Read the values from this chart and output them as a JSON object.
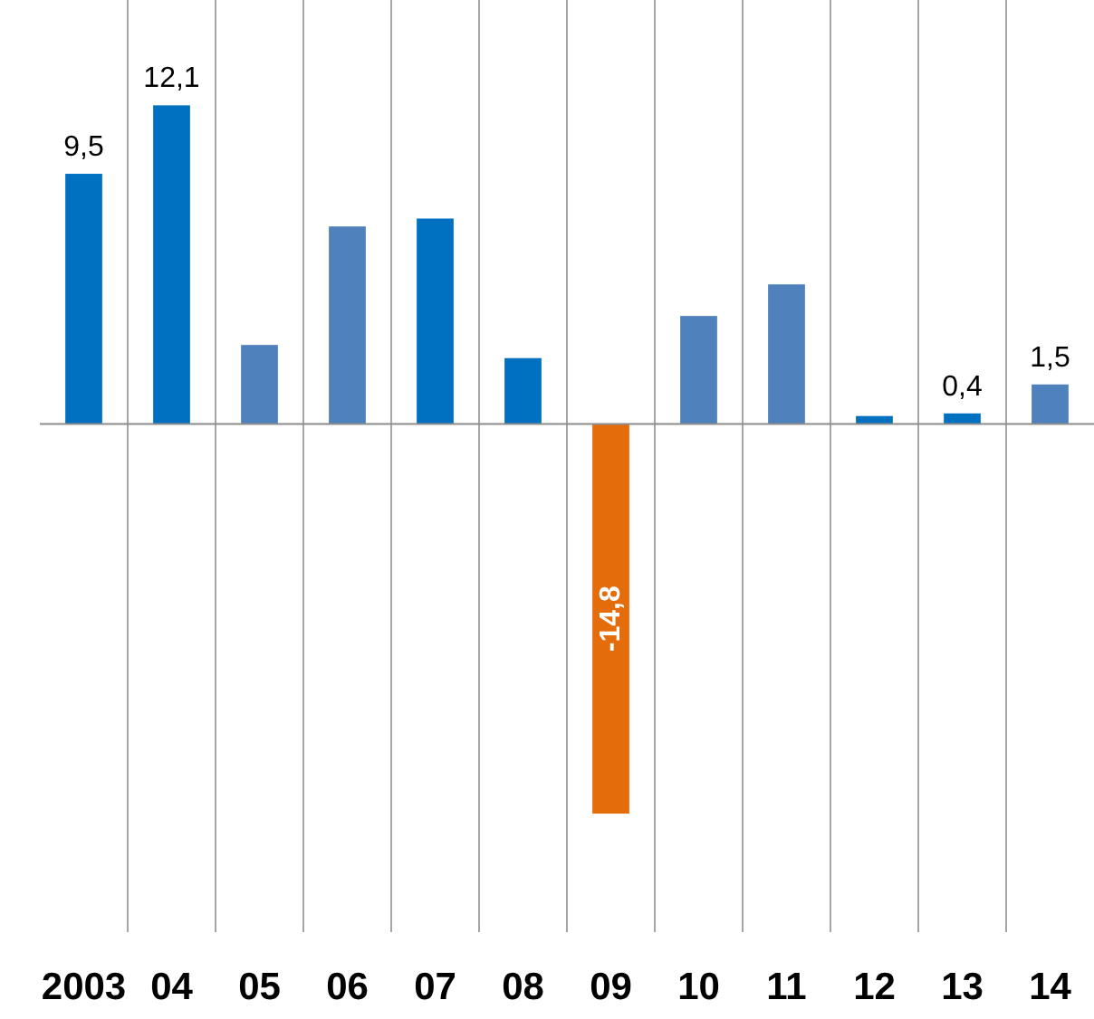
{
  "chart_data": {
    "type": "bar",
    "categories": [
      "2003",
      "04",
      "05",
      "06",
      "07",
      "08",
      "09",
      "10",
      "11",
      "12",
      "13",
      "14"
    ],
    "values": [
      9.5,
      12.1,
      3.0,
      7.5,
      7.8,
      2.5,
      -14.8,
      4.1,
      5.3,
      0.3,
      0.4,
      1.5
    ],
    "colors": [
      "#0070c0",
      "#0070c0",
      "#4f81bd",
      "#4f81bd",
      "#0070c0",
      "#0070c0",
      "#e46c0a",
      "#4f81bd",
      "#4f81bd",
      "#0070c0",
      "#0070c0",
      "#4f81bd"
    ],
    "value_labels": [
      "9,5",
      "12,1",
      null,
      null,
      null,
      null,
      "-14,8",
      null,
      null,
      null,
      "0,4",
      "1,5"
    ],
    "ylim": [
      -19.3,
      16.1
    ],
    "grid": "x",
    "tick_labels": "x"
  }
}
